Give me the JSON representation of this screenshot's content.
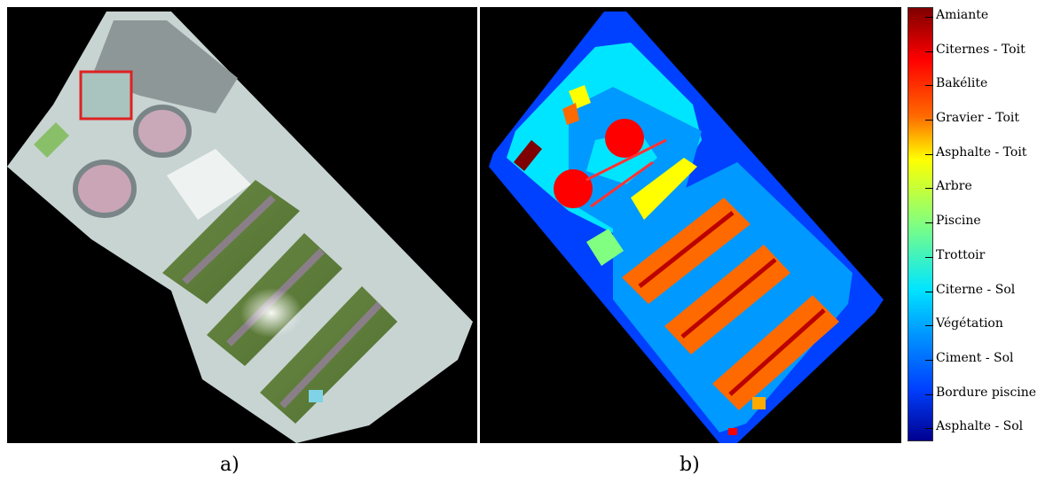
{
  "captions": {
    "a": "a)",
    "b": "b)"
  },
  "legend": {
    "labels": [
      "Amiante",
      "Citernes - Toit",
      "Bakélite",
      "Gravier - Toit",
      "Asphalte - Toit",
      "Arbre",
      "Piscine",
      "Trottoir",
      "Citerne - Sol",
      "Végétation",
      "Ciment - Sol",
      "Bordure piscine",
      "Asphalte - Sol"
    ],
    "colors": {
      "Amiante": "#7f0000",
      "Citernes - Toit": "#ff0000",
      "Gravier - Toit": "#ff6a00",
      "Asphalte - Toit": "#ffff00",
      "Piscine": "#80ff80",
      "Citerne - Sol": "#00e5ff",
      "Végétation": "#0099ff",
      "Ciment - Sol": "#0040ff",
      "Asphalte - Sol": "#00008f"
    }
  }
}
